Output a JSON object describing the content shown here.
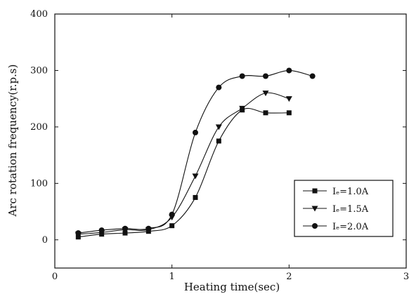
{
  "chart_data": {
    "type": "line",
    "xlabel": "Heating time(sec)",
    "ylabel": "Arc rotation frequency(r.p.s)",
    "xlim": [
      0,
      3
    ],
    "ylim": [
      -50,
      400
    ],
    "xticks": [
      0,
      1,
      2,
      3
    ],
    "yticks": [
      0,
      100,
      200,
      300,
      400
    ],
    "xtick_labels": [
      "0",
      "1",
      "2",
      "3"
    ],
    "ytick_labels": [
      "0",
      "100",
      "200",
      "300",
      "400"
    ],
    "grid": false,
    "legend_position": "bottom-right",
    "series": [
      {
        "name": "Iₑ=1.0A",
        "marker": "square",
        "x": [
          0.2,
          0.4,
          0.6,
          0.8,
          1.0,
          1.2,
          1.4,
          1.6,
          1.8,
          2.0
        ],
        "y": [
          5,
          10,
          12,
          15,
          25,
          75,
          175,
          230,
          225,
          225
        ]
      },
      {
        "name": "Iₑ=1.5A",
        "marker": "triangle-down",
        "x": [
          0.2,
          0.4,
          0.6,
          0.8,
          1.0,
          1.2,
          1.4,
          1.6,
          1.8,
          2.0
        ],
        "y": [
          10,
          13,
          18,
          18,
          40,
          113,
          200,
          233,
          260,
          250
        ]
      },
      {
        "name": "Iₑ=2.0A",
        "marker": "circle",
        "x": [
          0.2,
          0.4,
          0.6,
          0.8,
          1.0,
          1.2,
          1.4,
          1.6,
          1.8,
          2.0,
          2.2
        ],
        "y": [
          12,
          17,
          20,
          20,
          45,
          190,
          270,
          290,
          290,
          300,
          290
        ]
      }
    ]
  }
}
